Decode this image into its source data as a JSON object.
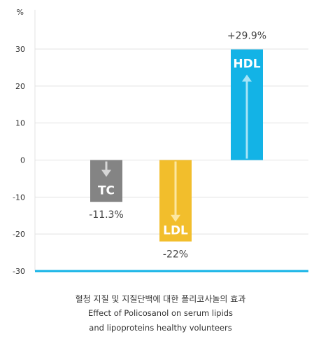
{
  "chart_data": {
    "type": "bar",
    "unit_label": "%",
    "categories": [
      "TC",
      "LDL",
      "HDL"
    ],
    "values": [
      -11.3,
      -22,
      29.9
    ],
    "value_labels": [
      "-11.3%",
      "-22%",
      "+29.9%"
    ],
    "bar_colors": [
      "#848484",
      "#f2be2c",
      "#13b3e6"
    ],
    "arrow_colors": [
      "#d6d6d6",
      "#fce7a0",
      "#a6e4f7"
    ],
    "axis_line_color": "#13b3e6",
    "ylim": [
      -30,
      30
    ],
    "yticks": [
      30,
      20,
      10,
      0,
      -10,
      -20,
      -30
    ],
    "grid": true
  },
  "caption": {
    "korean": "혈청 지질 및 지질단백에 대한 폴리코사놀의 효과",
    "english_line1": "Effect of Policosanol on serum lipids",
    "english_line2": "and lipoproteins healthy volunteers"
  }
}
